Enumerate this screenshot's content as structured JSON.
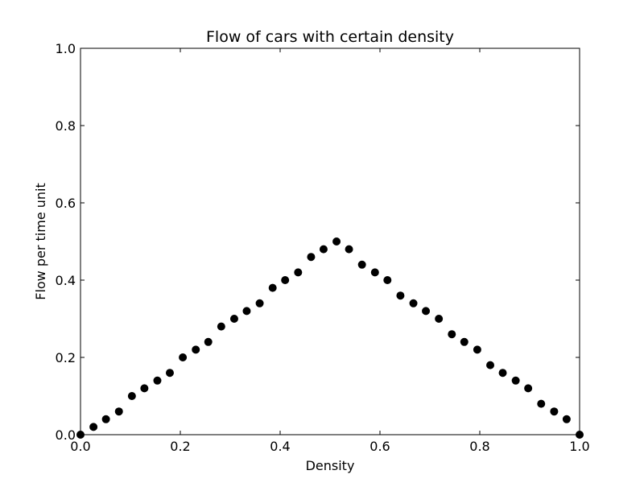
{
  "chart_data": {
    "type": "scatter",
    "title": "Flow of cars with certain density",
    "xlabel": "Density",
    "ylabel": "Flow per time unit",
    "xlim": [
      0.0,
      1.0
    ],
    "ylim": [
      0.0,
      1.0
    ],
    "x_ticks": [
      "0.0",
      "0.2",
      "0.4",
      "0.6",
      "0.8",
      "1.0"
    ],
    "y_ticks": [
      "0.0",
      "0.2",
      "0.4",
      "0.6",
      "0.8",
      "1.0"
    ],
    "grid": false,
    "marker_color": "#000000",
    "series": [
      {
        "x": [
          0.0,
          0.026,
          0.051,
          0.077,
          0.103,
          0.128,
          0.154,
          0.179,
          0.205,
          0.231,
          0.256,
          0.282,
          0.308,
          0.333,
          0.359,
          0.385,
          0.41,
          0.436,
          0.462,
          0.487,
          0.513,
          0.538,
          0.564,
          0.59,
          0.615,
          0.641,
          0.667,
          0.692,
          0.718,
          0.744,
          0.769,
          0.795,
          0.821,
          0.846,
          0.872,
          0.897,
          0.923,
          0.949,
          0.974,
          1.0
        ],
        "y": [
          0.0,
          0.02,
          0.04,
          0.06,
          0.1,
          0.12,
          0.14,
          0.16,
          0.2,
          0.22,
          0.24,
          0.28,
          0.3,
          0.32,
          0.34,
          0.38,
          0.4,
          0.42,
          0.46,
          0.48,
          0.5,
          0.48,
          0.44,
          0.42,
          0.4,
          0.36,
          0.34,
          0.32,
          0.3,
          0.26,
          0.24,
          0.22,
          0.18,
          0.16,
          0.14,
          0.12,
          0.08,
          0.06,
          0.04,
          0.0
        ]
      }
    ]
  }
}
